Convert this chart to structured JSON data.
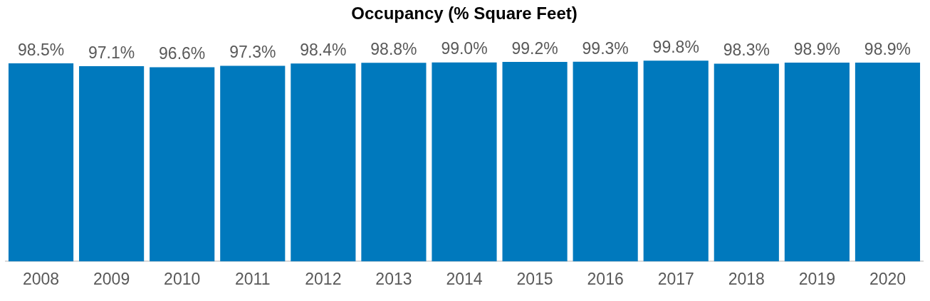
{
  "chart_data": {
    "type": "bar",
    "title": "Occupancy (% Square Feet)",
    "categories": [
      "2008",
      "2009",
      "2010",
      "2011",
      "2012",
      "2013",
      "2014",
      "2015",
      "2016",
      "2017",
      "2018",
      "2019",
      "2020"
    ],
    "values": [
      98.5,
      97.1,
      96.6,
      97.3,
      98.4,
      98.8,
      99.0,
      99.2,
      99.3,
      99.8,
      98.3,
      98.9,
      98.9
    ],
    "value_labels": [
      "98.5%",
      "97.1%",
      "96.6%",
      "97.3%",
      "98.4%",
      "98.8%",
      "99.0%",
      "99.2%",
      "99.3%",
      "99.8%",
      "98.3%",
      "98.9%",
      "98.9%"
    ],
    "color": "#0079bd",
    "grid": false,
    "legend": false
  }
}
